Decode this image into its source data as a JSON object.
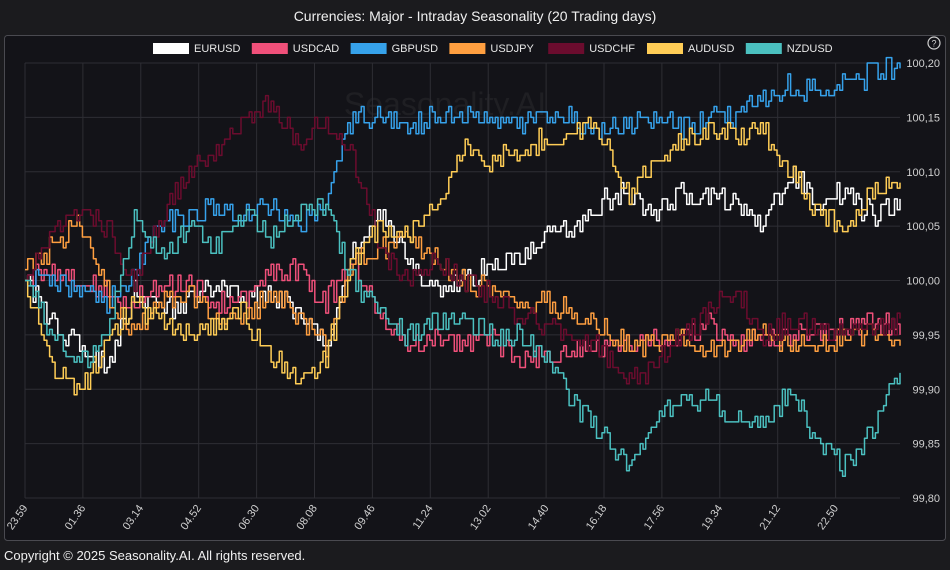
{
  "chart_data": {
    "type": "line",
    "title": "Currencies: Major - Intraday Seasonality (20 Trading days)",
    "watermark": "Seasonality.AI",
    "ylim": [
      99.8,
      100.2
    ],
    "y_ticks": [
      "99,80",
      "99,85",
      "99,90",
      "99,95",
      "100,00",
      "100,05",
      "100,10",
      "100,15",
      "100,20"
    ],
    "x_ticks": [
      "23.59",
      "01.36",
      "03.14",
      "04.52",
      "06.30",
      "08.08",
      "09.46",
      "11.24",
      "13.02",
      "14.40",
      "16.18",
      "17.56",
      "19.34",
      "21.12",
      "22.50"
    ],
    "help_icon": "question-mark",
    "legend_position": "top-center",
    "grid": true,
    "series": [
      {
        "name": "EURUSD",
        "color": "#ffffff",
        "values": [
          100.0,
          99.96,
          99.94,
          99.92,
          99.99,
          99.97,
          99.98,
          100.0,
          99.98,
          99.99,
          99.97,
          99.94,
          100.03,
          100.06,
          100.02,
          99.99,
          100.0,
          100.01,
          100.02,
          100.04,
          100.05,
          100.07,
          100.08,
          100.06,
          100.08,
          100.08,
          100.07,
          100.05,
          100.1,
          100.07,
          100.08,
          100.06,
          100.07
        ]
      },
      {
        "name": "USDCAD",
        "color": "#f0507a",
        "values": [
          100.0,
          100.01,
          100.0,
          99.99,
          99.98,
          99.99,
          100.0,
          99.98,
          99.98,
          100.01,
          100.01,
          99.98,
          100.02,
          99.97,
          99.94,
          99.95,
          99.94,
          99.95,
          99.93,
          99.93,
          99.94,
          99.94,
          99.94,
          99.95,
          99.95,
          99.96,
          99.94,
          99.95,
          99.95,
          99.95,
          99.96,
          99.96,
          99.96
        ]
      },
      {
        "name": "GBPUSD",
        "color": "#36a2eb",
        "values": [
          100.0,
          100.0,
          99.99,
          99.98,
          100.01,
          100.05,
          100.06,
          100.07,
          100.06,
          100.07,
          100.05,
          100.07,
          100.15,
          100.15,
          100.14,
          100.15,
          100.15,
          100.15,
          100.14,
          100.15,
          100.15,
          100.14,
          100.14,
          100.15,
          100.14,
          100.15,
          100.15,
          100.17,
          100.18,
          100.17,
          100.18,
          100.19,
          100.2
        ]
      },
      {
        "name": "USDJPY",
        "color": "#ff9f40",
        "values": [
          100.01,
          100.03,
          100.05,
          99.99,
          99.95,
          99.98,
          99.99,
          99.97,
          99.96,
          99.99,
          99.97,
          99.94,
          100.02,
          100.03,
          100.04,
          100.02,
          100.0,
          99.99,
          99.98,
          99.98,
          99.97,
          99.96,
          99.94,
          99.94,
          99.95,
          99.94,
          99.94,
          99.95,
          99.94,
          99.94,
          99.95,
          99.95,
          99.94
        ]
      },
      {
        "name": "USDCHF",
        "color": "#6b0c2e",
        "values": [
          100.0,
          100.04,
          100.06,
          100.05,
          100.0,
          100.06,
          100.1,
          100.12,
          100.15,
          100.16,
          100.13,
          100.15,
          100.11,
          100.03,
          100.0,
          100.02,
          100.0,
          99.99,
          99.97,
          99.96,
          99.95,
          99.94,
          99.91,
          99.92,
          99.95,
          99.97,
          99.99,
          99.95,
          99.96,
          99.96,
          99.95,
          99.95,
          99.96
        ]
      },
      {
        "name": "AUDUSD",
        "color": "#ffcd56",
        "values": [
          100.0,
          99.92,
          99.9,
          99.94,
          99.98,
          99.96,
          99.95,
          99.96,
          99.97,
          99.93,
          99.91,
          99.93,
          100.02,
          100.05,
          100.04,
          100.07,
          100.12,
          100.11,
          100.12,
          100.13,
          100.14,
          100.14,
          100.08,
          100.11,
          100.13,
          100.14,
          100.13,
          100.14,
          100.1,
          100.06,
          100.05,
          100.08,
          100.1
        ]
      },
      {
        "name": "NZDUSD",
        "color": "#4bc0c0",
        "values": [
          100.0,
          99.95,
          99.92,
          99.95,
          100.06,
          100.02,
          100.05,
          100.03,
          100.06,
          100.04,
          100.06,
          100.07,
          100.0,
          99.97,
          99.95,
          99.96,
          99.96,
          99.95,
          99.95,
          99.93,
          99.89,
          99.86,
          99.83,
          99.87,
          99.89,
          99.89,
          99.87,
          99.87,
          99.9,
          99.85,
          99.83,
          99.86,
          99.92
        ]
      }
    ]
  },
  "footer": {
    "copyright": "Copyright © 2025 Seasonality.AI. All rights reserved."
  }
}
